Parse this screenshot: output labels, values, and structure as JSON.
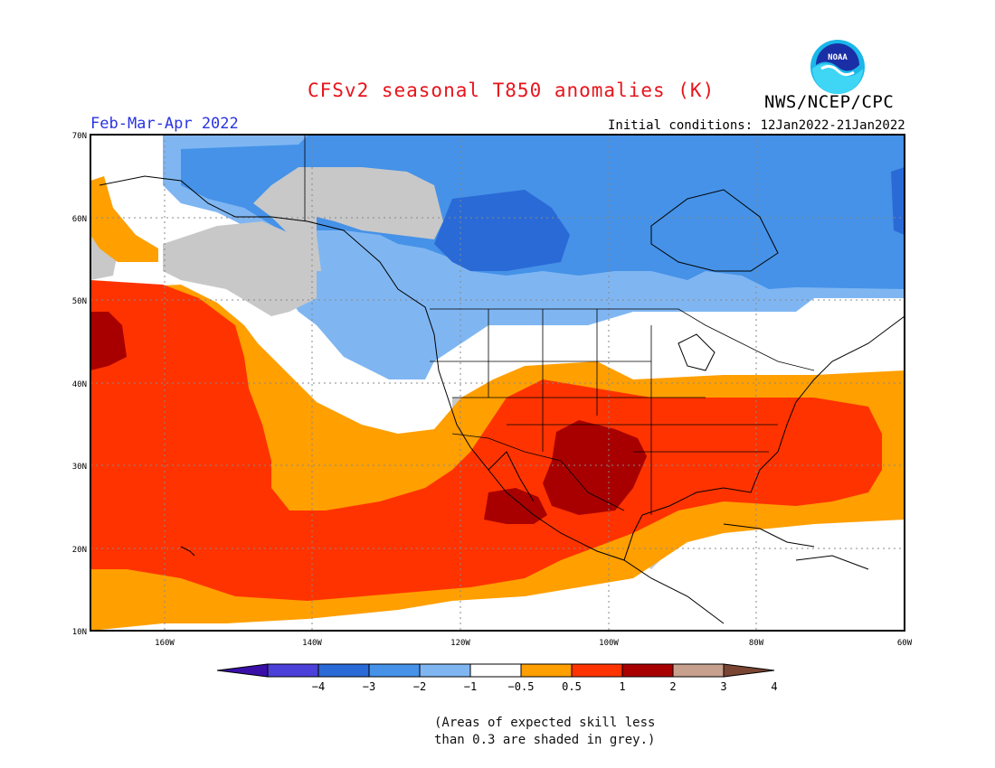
{
  "header": {
    "title": "CFSv2 seasonal T850 anomalies (K)",
    "agency": "NWS/NCEP/CPC",
    "period": "Feb-Mar-Apr 2022",
    "initial_conditions": "Initial conditions: 12Jan2022-21Jan2022",
    "logo_text": "NOAA"
  },
  "map": {
    "lat_labels": [
      "70N",
      "60N",
      "50N",
      "40N",
      "30N",
      "20N",
      "10N"
    ],
    "lon_labels": [
      "160W",
      "140W",
      "120W",
      "100W",
      "80W",
      "60W"
    ],
    "lat_range": [
      10,
      70
    ],
    "lon_range": [
      -170,
      -60
    ]
  },
  "colorbar": {
    "labels": [
      "-4",
      "-3",
      "-2",
      "-1",
      "-0.5",
      "0.5",
      "1",
      "2",
      "3",
      "4"
    ],
    "colors": [
      "#3a0fa8",
      "#4b40d8",
      "#2a6ad6",
      "#4592e8",
      "#7fb6f2",
      "#ffffff",
      "#ff9f00",
      "#ff3300",
      "#a80000",
      "#c8a08e",
      "#7a4532"
    ]
  },
  "footnote": {
    "line1": "(Areas of expected skill less",
    "line2": "than 0.3 are shaded in grey.)"
  },
  "colors": {
    "warm_strong": "#a80000",
    "warm": "#ff3300",
    "warm_light": "#ff9f00",
    "cool_light": "#7fb6f2",
    "cool": "#4592e8",
    "cool_strong": "#2a6ad6",
    "grey_low_skill": "#c8c8c8"
  }
}
